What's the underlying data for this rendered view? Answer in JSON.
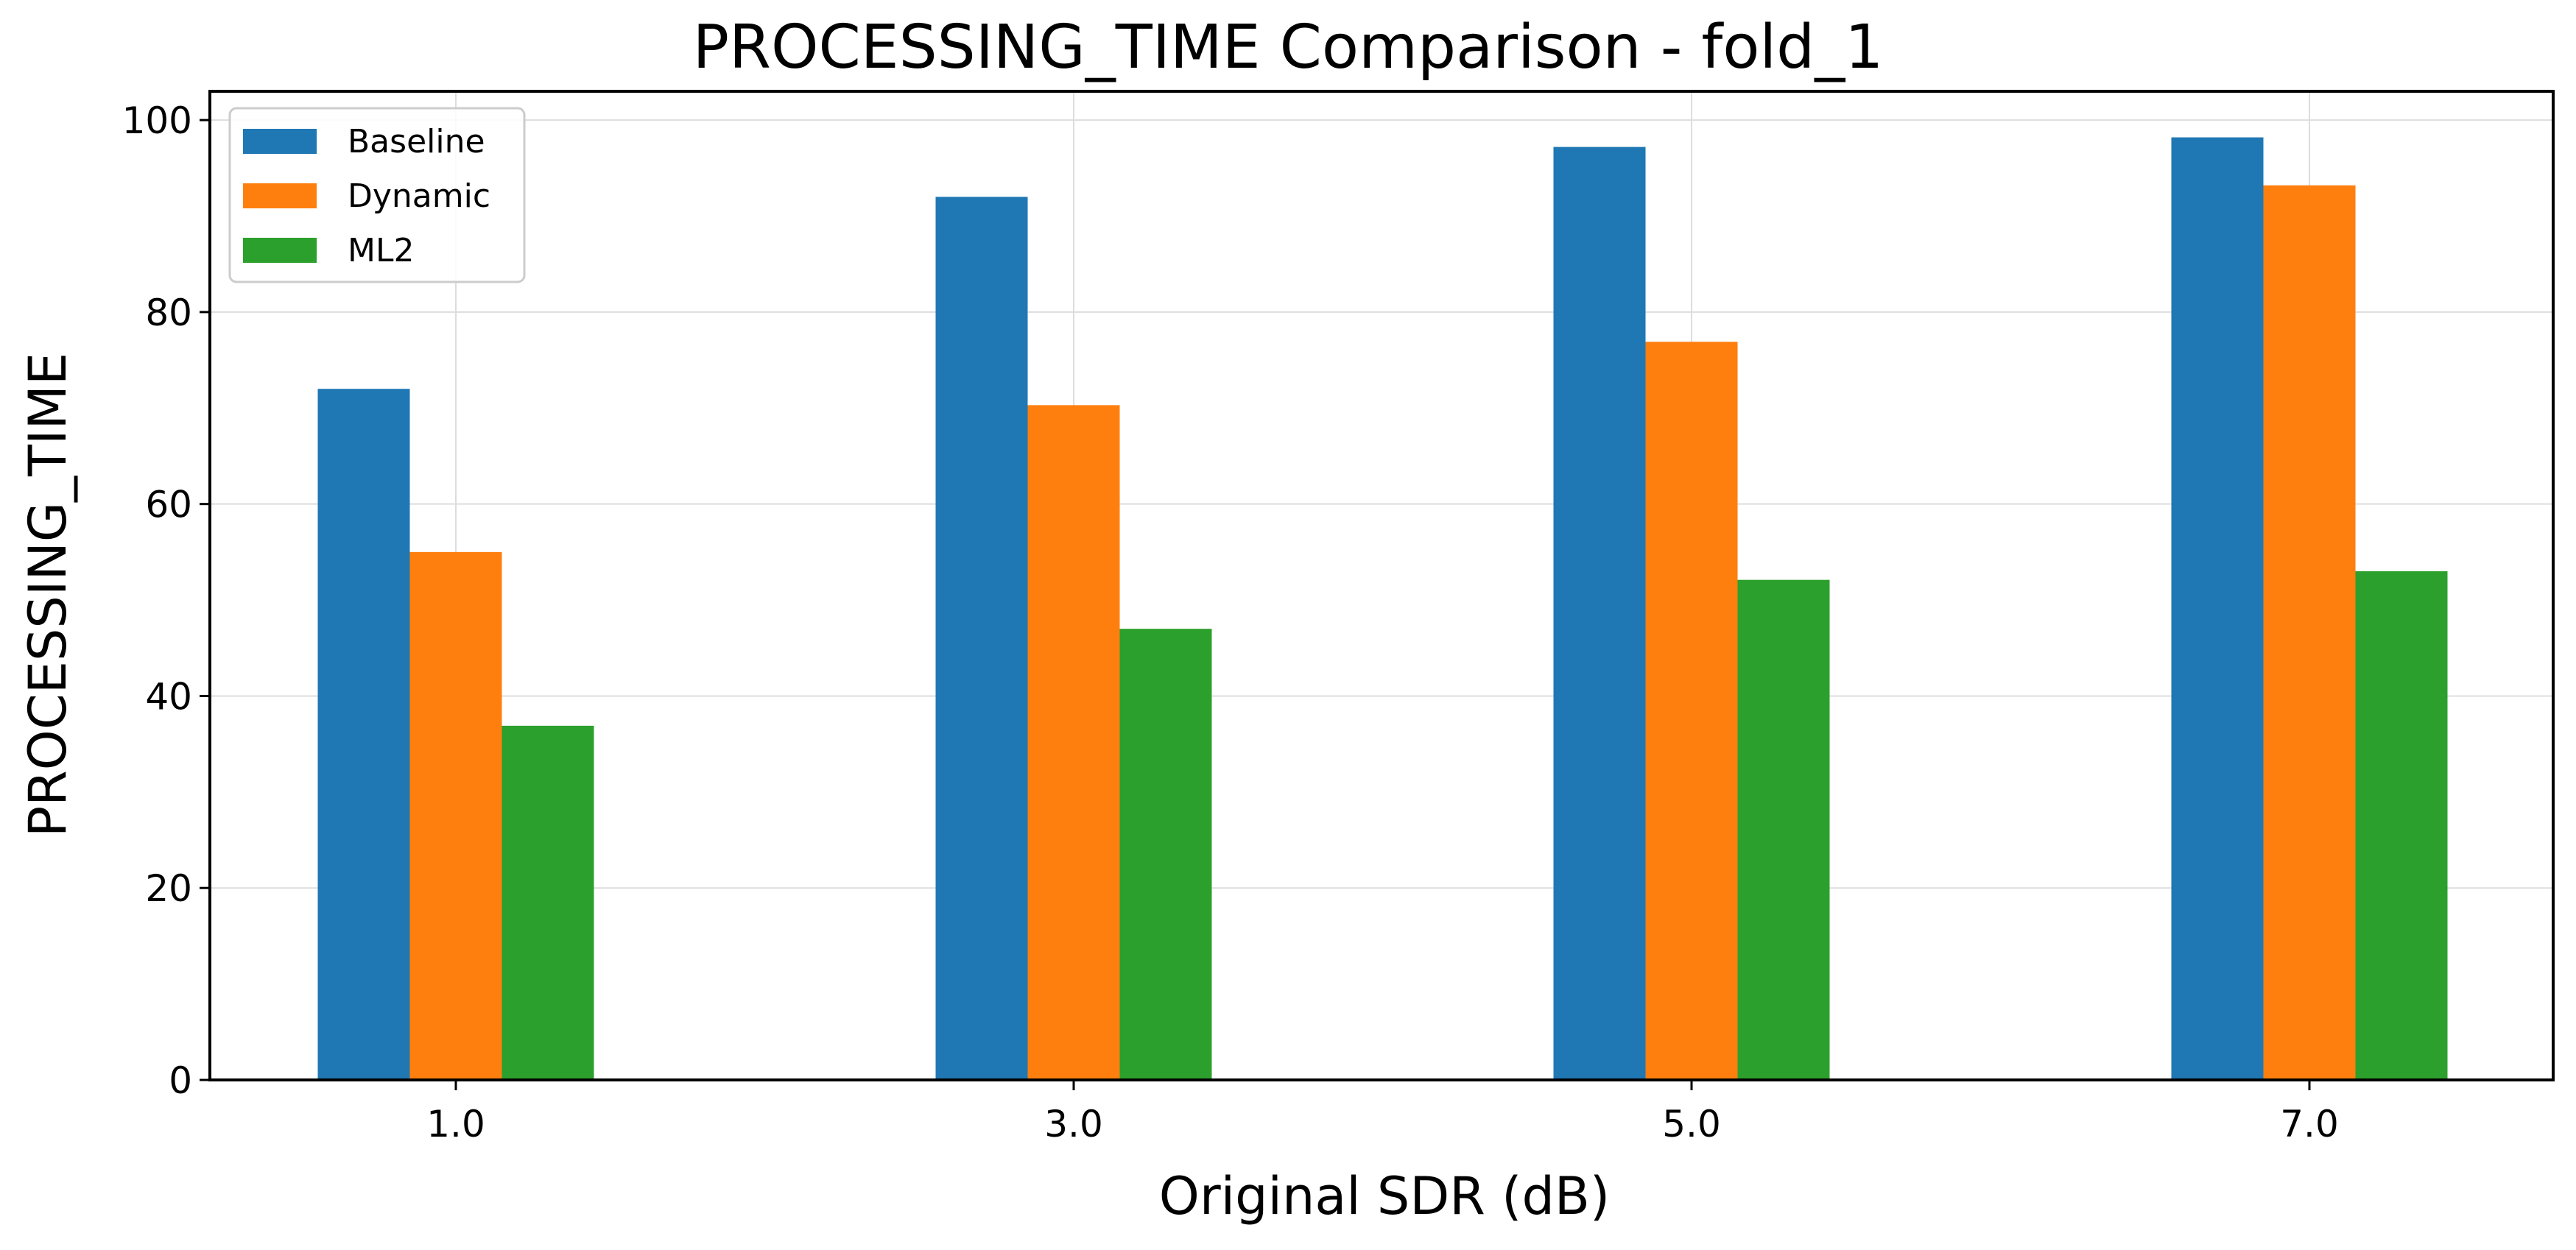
{
  "chart_data": {
    "type": "bar",
    "title": "PROCESSING_TIME Comparison - fold_1",
    "xlabel": "Original SDR (dB)",
    "ylabel": "PROCESSING_TIME",
    "categories": [
      "1.0",
      "3.0",
      "5.0",
      "7.0"
    ],
    "series": [
      {
        "name": "Baseline",
        "color": "#1f77b4",
        "values": [
          72.0,
          92.0,
          97.2,
          98.2
        ]
      },
      {
        "name": "Dynamic",
        "color": "#ff7f0e",
        "values": [
          55.0,
          70.3,
          76.9,
          93.2
        ]
      },
      {
        "name": "ML2",
        "color": "#2ca02c",
        "values": [
          36.9,
          47.0,
          52.1,
          53.0
        ]
      }
    ],
    "ylim": [
      0,
      103
    ],
    "yticks": [
      0,
      20,
      40,
      60,
      80,
      100
    ],
    "grid": true,
    "legend_position": "upper-left"
  }
}
